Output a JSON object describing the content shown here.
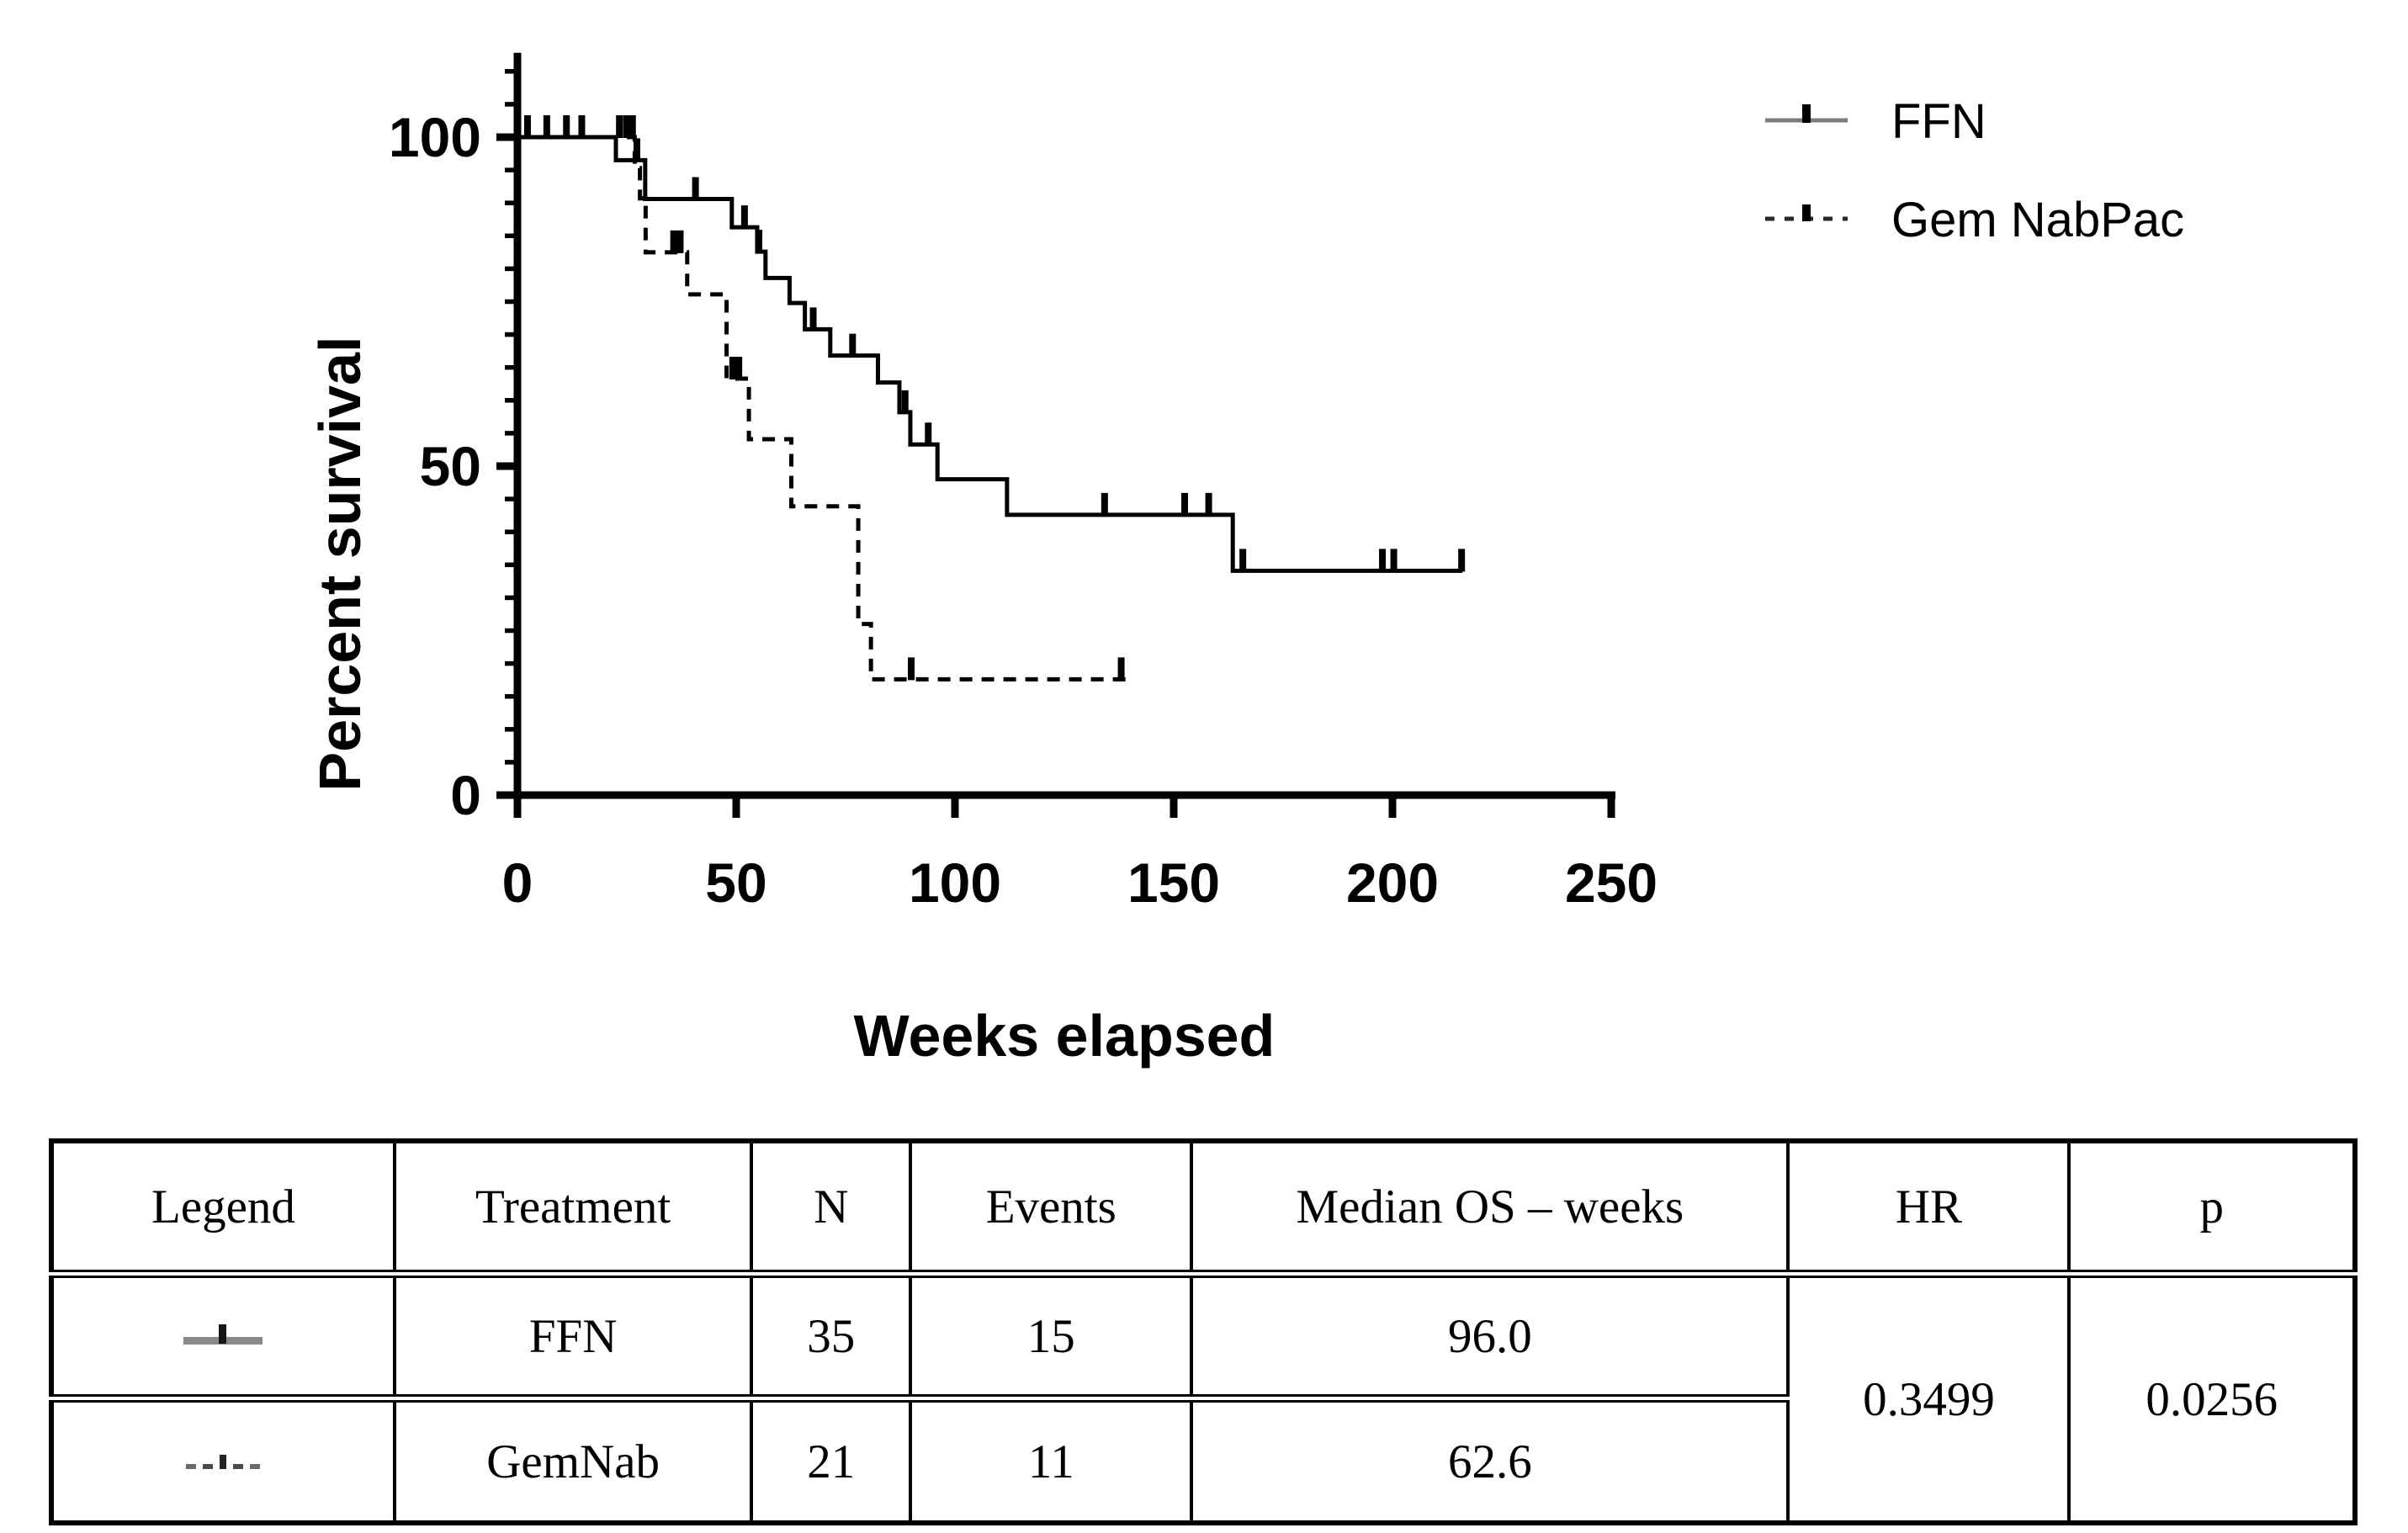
{
  "figure": {
    "background": "#ffffff",
    "ink_color": "#000000",
    "ffn_swatch_gray": "#7d7d7d"
  },
  "chart_data": {
    "type": "line",
    "subtype": "kaplan-meier-step-survival",
    "title": "",
    "xlabel": "Weeks elapsed",
    "ylabel": "Percent survival",
    "xlim": [
      0,
      250
    ],
    "ylim": [
      0,
      110
    ],
    "xticks": [
      0,
      50,
      100,
      150,
      200,
      250
    ],
    "xtick_labels": [
      "0",
      "50",
      "100",
      "150",
      "200",
      "250"
    ],
    "yticks": [
      0,
      50,
      100
    ],
    "ytick_labels": [
      "0",
      "50",
      "100"
    ],
    "y_minor_tick_step": 5,
    "y_minor_tick_max": 110,
    "grid": false,
    "legend_position": "outside-top-right",
    "series": [
      {
        "name": "FFN",
        "line_style": "solid",
        "color": "#000000",
        "legend_swatch_line_color": "#7d7d7d",
        "steps": [
          [
            0,
            100
          ],
          [
            22.5,
            96.5
          ],
          [
            29.2,
            90.6
          ],
          [
            49,
            86.3
          ],
          [
            54.8,
            82.6
          ],
          [
            56.7,
            78.6
          ],
          [
            62.2,
            74.8
          ],
          [
            65.7,
            70.8
          ],
          [
            71.5,
            66.8
          ],
          [
            82.4,
            62.7
          ],
          [
            87.3,
            58.2
          ],
          [
            89.8,
            53.3
          ],
          [
            96,
            48.0
          ],
          [
            111.9,
            42.6
          ],
          [
            163.5,
            34.1
          ]
        ],
        "end_time": 216,
        "censors": [
          [
            2.3,
            100
          ],
          [
            6.7,
            100
          ],
          [
            11.2,
            100
          ],
          [
            14.7,
            100
          ],
          [
            27.3,
            96.5
          ],
          [
            40.7,
            90.6
          ],
          [
            51.9,
            86.3
          ],
          [
            55.2,
            82.6
          ],
          [
            67.6,
            70.8
          ],
          [
            76.6,
            66.8
          ],
          [
            88.6,
            58.2
          ],
          [
            93.9,
            53.3
          ],
          [
            134.2,
            42.6
          ],
          [
            152.5,
            42.6
          ],
          [
            158,
            42.6
          ],
          [
            165.8,
            34.1
          ],
          [
            197.7,
            34.1
          ],
          [
            200.3,
            34.1
          ],
          [
            215.8,
            34.1
          ]
        ]
      },
      {
        "name": "Gem NabPac",
        "line_style": "dashed",
        "color": "#000000",
        "steps": [
          [
            0,
            100
          ],
          [
            26.8,
            95.3
          ],
          [
            28,
            90.7
          ],
          [
            29.3,
            82.5
          ],
          [
            38.8,
            76.1
          ],
          [
            47.8,
            63.3
          ],
          [
            52.9,
            54.1
          ],
          [
            62.6,
            43.9
          ],
          [
            77.9,
            26.0
          ],
          [
            80.8,
            17.6
          ]
        ],
        "end_time": 139,
        "censors": [
          [
            23.3,
            100
          ],
          [
            24.9,
            100
          ],
          [
            26.3,
            100
          ],
          [
            35.7,
            82.5
          ],
          [
            37.2,
            82.5
          ],
          [
            49.2,
            63.3
          ],
          [
            50.6,
            63.3
          ],
          [
            90,
            17.6
          ],
          [
            138,
            17.6
          ]
        ]
      }
    ]
  },
  "table": {
    "headers": [
      "Legend",
      "Treatment",
      "N",
      "Events",
      "Median OS – weeks",
      "HR",
      "p"
    ],
    "rows": [
      {
        "swatch": "ffn-solid-gray-line-with-censor-tick",
        "treatment": "FFN",
        "n": "35",
        "events": "15",
        "median_os": "96.0"
      },
      {
        "swatch": "gemnab-dashed-line-with-censor-tick",
        "treatment": "GemNab",
        "n": "21",
        "events": "11",
        "median_os": "62.6"
      }
    ],
    "hr_value": "0.3499",
    "p_value": "0.0256"
  }
}
